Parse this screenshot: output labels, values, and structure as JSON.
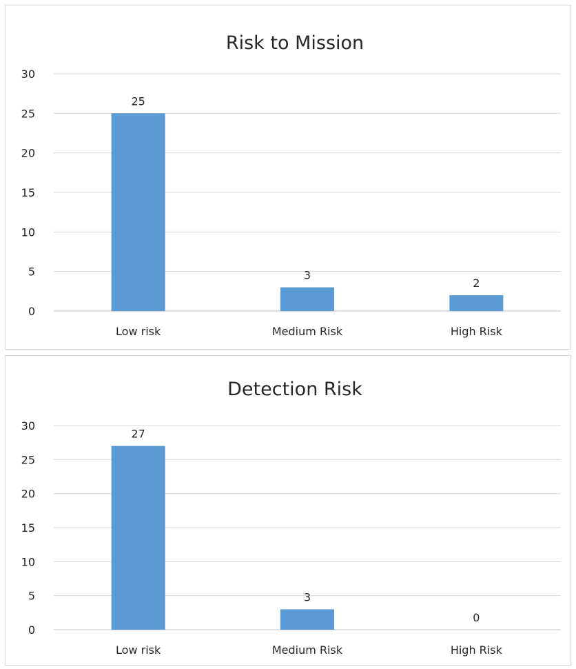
{
  "chart_data": [
    {
      "type": "bar",
      "title": "Risk to Mission",
      "categories": [
        "Low risk",
        "Medium Risk",
        "High Risk"
      ],
      "values": [
        25,
        3,
        2
      ],
      "ylim": [
        0,
        30
      ],
      "yticks": [
        0,
        5,
        10,
        15,
        20,
        25,
        30
      ],
      "grid": true,
      "legend": "none",
      "bar_color": "#5b9bd5"
    },
    {
      "type": "bar",
      "title": "Detection Risk",
      "categories": [
        "Low risk",
        "Medium Risk",
        "High Risk"
      ],
      "values": [
        27,
        3,
        0
      ],
      "ylim": [
        0,
        30
      ],
      "yticks": [
        0,
        5,
        10,
        15,
        20,
        25,
        30
      ],
      "grid": true,
      "legend": "none",
      "bar_color": "#5b9bd5"
    }
  ]
}
